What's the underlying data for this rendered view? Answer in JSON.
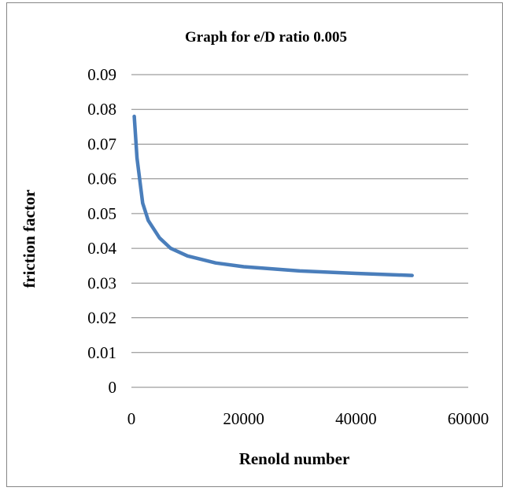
{
  "chart_data": {
    "type": "line",
    "title": "Graph for e/D ratio 0.005",
    "xlabel": "Renold number",
    "ylabel": "friction factor",
    "xlim": [
      0,
      60000
    ],
    "ylim": [
      0,
      0.09
    ],
    "x_ticks": [
      "0",
      "20000",
      "40000",
      "60000"
    ],
    "y_ticks": [
      "0",
      "0.01",
      "0.02",
      "0.03",
      "0.04",
      "0.05",
      "0.06",
      "0.07",
      "0.08",
      "0.09"
    ],
    "grid": "horizontal",
    "legend": "none",
    "series": [
      {
        "color": "#4a7ebb",
        "x": [
          500,
          1000,
          2000,
          3000,
          5000,
          7000,
          10000,
          15000,
          20000,
          30000,
          40000,
          50000
        ],
        "values": [
          0.078,
          0.066,
          0.053,
          0.048,
          0.043,
          0.04,
          0.0378,
          0.0358,
          0.0347,
          0.0335,
          0.0328,
          0.0322
        ]
      }
    ]
  }
}
